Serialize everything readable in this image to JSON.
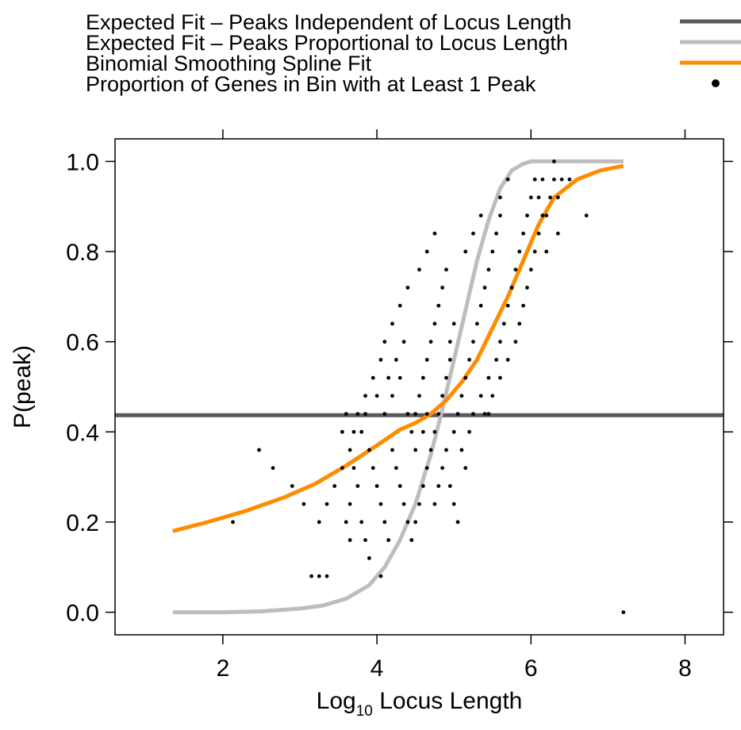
{
  "chart_data": {
    "type": "scatter",
    "xlabel": {
      "main": "Log",
      "sub": "10",
      "rest": " Locus Length"
    },
    "ylabel": "P(peak)",
    "xlim": [
      0.6,
      8.5
    ],
    "ylim": [
      -0.05,
      1.05
    ],
    "x_ticks": [
      "2",
      "4",
      "6",
      "8"
    ],
    "x_tick_values": [
      2,
      4,
      6,
      8
    ],
    "y_ticks": [
      "0.0",
      "0.2",
      "0.4",
      "0.6",
      "0.8",
      "1.0"
    ],
    "y_tick_values": [
      0.0,
      0.2,
      0.4,
      0.6,
      0.8,
      1.0
    ],
    "legend_position": "top",
    "legend": [
      {
        "label": "Expected Fit – Peaks Independent of Locus Length",
        "kind": "line",
        "color": "#5a5a5a"
      },
      {
        "label": "Expected Fit – Peaks Proportional to Locus Length",
        "kind": "line",
        "color": "#bdbdbd"
      },
      {
        "label": "Binomial Smoothing Spline Fit",
        "kind": "line",
        "color": "#ff8c00"
      },
      {
        "label": "Proportion of Genes in Bin with at Least 1 Peak",
        "kind": "point",
        "color": "#000000"
      }
    ],
    "series": [
      {
        "name": "Expected Fit – Peaks Independent of Locus Length",
        "type": "line",
        "color": "#5a5a5a",
        "x": [
          0.6,
          8.5
        ],
        "y": [
          0.437,
          0.437
        ]
      },
      {
        "name": "Expected Fit – Peaks Proportional to Locus Length",
        "type": "line",
        "color": "#bdbdbd",
        "x": [
          1.35,
          2.0,
          2.5,
          3.0,
          3.3,
          3.6,
          3.9,
          4.1,
          4.3,
          4.5,
          4.7,
          4.85,
          5.0,
          5.15,
          5.3,
          5.45,
          5.6,
          5.75,
          5.9,
          6.0,
          6.2,
          6.5,
          7.2
        ],
        "y": [
          0.0,
          0.0,
          0.002,
          0.008,
          0.015,
          0.03,
          0.06,
          0.1,
          0.16,
          0.24,
          0.35,
          0.45,
          0.56,
          0.67,
          0.78,
          0.87,
          0.94,
          0.98,
          0.995,
          1.0,
          1.0,
          1.0,
          1.0
        ]
      },
      {
        "name": "Binomial Smoothing Spline Fit",
        "type": "line",
        "color": "#ff8c00",
        "x": [
          1.35,
          1.8,
          2.3,
          2.8,
          3.2,
          3.6,
          4.0,
          4.3,
          4.5,
          4.7,
          4.9,
          5.1,
          5.3,
          5.5,
          5.7,
          5.9,
          6.1,
          6.3,
          6.6,
          6.9,
          7.2
        ],
        "y": [
          0.18,
          0.2,
          0.225,
          0.255,
          0.285,
          0.325,
          0.37,
          0.405,
          0.42,
          0.44,
          0.47,
          0.51,
          0.56,
          0.63,
          0.7,
          0.78,
          0.86,
          0.92,
          0.96,
          0.98,
          0.99
        ]
      },
      {
        "name": "Proportion of Genes in Bin with at Least 1 Peak",
        "type": "scatter",
        "color": "#000000",
        "points": [
          [
            2.13,
            0.2
          ],
          [
            2.47,
            0.36
          ],
          [
            2.65,
            0.32
          ],
          [
            2.9,
            0.28
          ],
          [
            3.05,
            0.24
          ],
          [
            3.25,
            0.2
          ],
          [
            3.15,
            0.08
          ],
          [
            3.25,
            0.08
          ],
          [
            3.35,
            0.08
          ],
          [
            3.35,
            0.24
          ],
          [
            3.45,
            0.28
          ],
          [
            3.55,
            0.32
          ],
          [
            3.6,
            0.2
          ],
          [
            3.65,
            0.24
          ],
          [
            3.65,
            0.16
          ],
          [
            3.75,
            0.28
          ],
          [
            3.8,
            0.2
          ],
          [
            3.85,
            0.16
          ],
          [
            3.9,
            0.12
          ],
          [
            3.55,
            0.4
          ],
          [
            3.65,
            0.36
          ],
          [
            3.7,
            0.32
          ],
          [
            3.75,
            0.44
          ],
          [
            3.8,
            0.4
          ],
          [
            3.85,
            0.44
          ],
          [
            3.9,
            0.36
          ],
          [
            3.95,
            0.32
          ],
          [
            4.0,
            0.28
          ],
          [
            4.05,
            0.24
          ],
          [
            4.1,
            0.2
          ],
          [
            4.15,
            0.16
          ],
          [
            4.05,
            0.08
          ],
          [
            3.6,
            0.44
          ],
          [
            3.7,
            0.4
          ],
          [
            3.85,
            0.48
          ],
          [
            3.95,
            0.52
          ],
          [
            4.0,
            0.48
          ],
          [
            4.05,
            0.56
          ],
          [
            4.1,
            0.6
          ],
          [
            4.15,
            0.52
          ],
          [
            4.2,
            0.64
          ],
          [
            4.25,
            0.56
          ],
          [
            4.3,
            0.68
          ],
          [
            4.35,
            0.6
          ],
          [
            4.4,
            0.72
          ],
          [
            4.2,
            0.36
          ],
          [
            4.25,
            0.32
          ],
          [
            4.3,
            0.28
          ],
          [
            4.35,
            0.24
          ],
          [
            4.4,
            0.2
          ],
          [
            4.45,
            0.16
          ],
          [
            4.5,
            0.2
          ],
          [
            4.55,
            0.24
          ],
          [
            4.6,
            0.28
          ],
          [
            4.65,
            0.32
          ],
          [
            4.7,
            0.36
          ],
          [
            4.75,
            0.4
          ],
          [
            4.5,
            0.44
          ],
          [
            4.55,
            0.48
          ],
          [
            4.6,
            0.52
          ],
          [
            4.65,
            0.56
          ],
          [
            4.7,
            0.6
          ],
          [
            4.75,
            0.64
          ],
          [
            4.8,
            0.68
          ],
          [
            4.85,
            0.72
          ],
          [
            4.9,
            0.76
          ],
          [
            4.95,
            0.6
          ],
          [
            5.0,
            0.64
          ],
          [
            4.1,
            0.44
          ],
          [
            4.2,
            0.48
          ],
          [
            4.3,
            0.52
          ],
          [
            4.4,
            0.44
          ],
          [
            4.45,
            0.4
          ],
          [
            4.5,
            0.36
          ],
          [
            4.6,
            0.4
          ],
          [
            4.65,
            0.44
          ],
          [
            4.8,
            0.44
          ],
          [
            4.85,
            0.48
          ],
          [
            4.9,
            0.52
          ],
          [
            4.95,
            0.56
          ],
          [
            5.05,
            0.44
          ],
          [
            5.1,
            0.48
          ],
          [
            5.15,
            0.52
          ],
          [
            5.2,
            0.56
          ],
          [
            5.25,
            0.6
          ],
          [
            5.3,
            0.64
          ],
          [
            5.35,
            0.68
          ],
          [
            5.4,
            0.72
          ],
          [
            5.45,
            0.76
          ],
          [
            5.5,
            0.8
          ],
          [
            5.55,
            0.84
          ],
          [
            5.6,
            0.88
          ],
          [
            5.1,
            0.36
          ],
          [
            5.15,
            0.32
          ],
          [
            5.2,
            0.4
          ],
          [
            5.0,
            0.4
          ],
          [
            4.9,
            0.36
          ],
          [
            4.85,
            0.32
          ],
          [
            4.8,
            0.28
          ],
          [
            4.75,
            0.24
          ],
          [
            4.95,
            0.28
          ],
          [
            5.0,
            0.24
          ],
          [
            5.05,
            0.2
          ],
          [
            5.25,
            0.44
          ],
          [
            5.35,
            0.48
          ],
          [
            5.45,
            0.52
          ],
          [
            5.55,
            0.56
          ],
          [
            5.6,
            0.6
          ],
          [
            5.65,
            0.64
          ],
          [
            5.7,
            0.68
          ],
          [
            5.75,
            0.72
          ],
          [
            5.8,
            0.76
          ],
          [
            5.85,
            0.8
          ],
          [
            5.9,
            0.84
          ],
          [
            5.95,
            0.88
          ],
          [
            5.4,
            0.44
          ],
          [
            5.5,
            0.48
          ],
          [
            5.6,
            0.52
          ],
          [
            5.7,
            0.56
          ],
          [
            5.8,
            0.6
          ],
          [
            5.85,
            0.64
          ],
          [
            5.9,
            0.68
          ],
          [
            5.95,
            0.72
          ],
          [
            6.0,
            0.76
          ],
          [
            6.05,
            0.8
          ],
          [
            6.1,
            0.84
          ],
          [
            6.15,
            0.88
          ],
          [
            6.0,
            0.92
          ],
          [
            6.05,
            0.96
          ],
          [
            6.1,
            0.92
          ],
          [
            6.15,
            0.96
          ],
          [
            6.2,
            0.88
          ],
          [
            6.25,
            0.92
          ],
          [
            6.3,
            0.96
          ],
          [
            6.35,
            0.92
          ],
          [
            6.4,
            0.96
          ],
          [
            6.5,
            0.96
          ],
          [
            6.3,
            1.0
          ],
          [
            5.45,
            0.44
          ],
          [
            5.6,
            0.92
          ],
          [
            5.7,
            0.96
          ],
          [
            5.35,
            0.88
          ],
          [
            5.25,
            0.84
          ],
          [
            5.15,
            0.8
          ],
          [
            4.55,
            0.76
          ],
          [
            4.65,
            0.8
          ],
          [
            4.75,
            0.84
          ],
          [
            6.2,
            0.8
          ],
          [
            6.35,
            0.84
          ],
          [
            6.72,
            0.88
          ],
          [
            7.2,
            0.0
          ]
        ]
      }
    ]
  }
}
